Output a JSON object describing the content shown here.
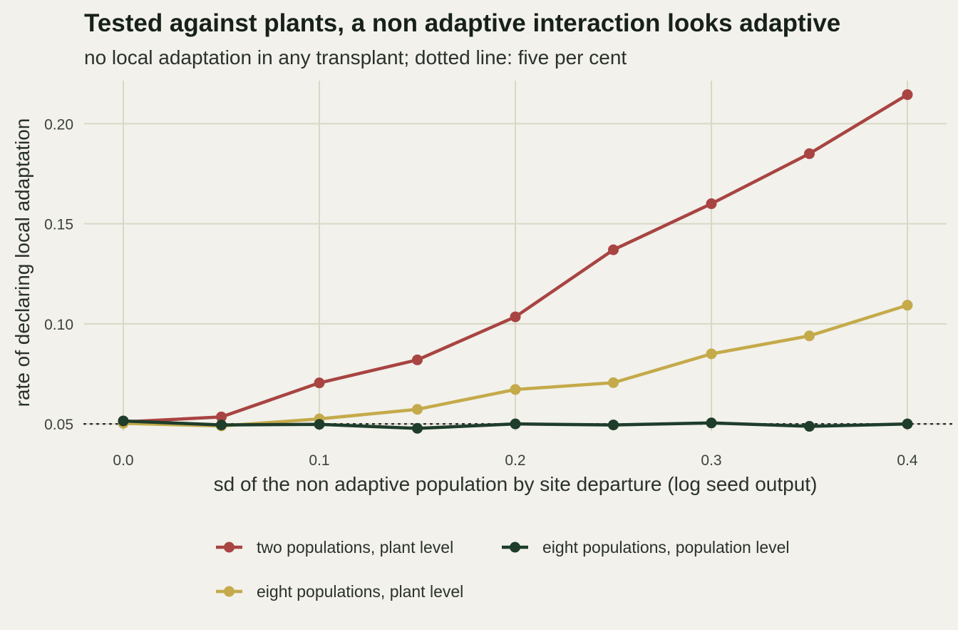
{
  "chart_data": {
    "type": "line",
    "title": "Tested against plants, a non adaptive interaction looks adaptive",
    "subtitle": "no local adaptation in any transplant; dotted line: five per cent",
    "xlabel": "sd of the non adaptive population by site departure (log seed output)",
    "ylabel": "rate of declaring local adaptation",
    "x": [
      0.0,
      0.05,
      0.1,
      0.15,
      0.2,
      0.25,
      0.3,
      0.35,
      0.4
    ],
    "xlim": [
      -0.02,
      0.42
    ],
    "ylim": [
      0.0465,
      0.2215
    ],
    "x_ticks": [
      0.0,
      0.1,
      0.2,
      0.3,
      0.4
    ],
    "x_tick_labels": [
      "0.0",
      "0.1",
      "0.2",
      "0.3",
      "0.4"
    ],
    "y_ticks": [
      0.05,
      0.1,
      0.15,
      0.2
    ],
    "y_tick_labels": [
      "0.05",
      "0.10",
      "0.15",
      "0.20"
    ],
    "reference_line": {
      "y": 0.05,
      "style": "dotted"
    },
    "grid": true,
    "legend_position": "bottom",
    "series": [
      {
        "name": "two populations, plant level",
        "color": "#a84442",
        "values": [
          0.051,
          0.0535,
          0.0705,
          0.082,
          0.1035,
          0.137,
          0.16,
          0.185,
          0.2145
        ]
      },
      {
        "name": "eight populations, population level",
        "color": "#1e3d2b",
        "values": [
          0.0515,
          0.0495,
          0.0498,
          0.0478,
          0.05,
          0.0495,
          0.0505,
          0.0488,
          0.05
        ]
      },
      {
        "name": "eight populations, plant level",
        "color": "#c4aa4a",
        "values": [
          0.0503,
          0.049,
          0.0525,
          0.0573,
          0.0672,
          0.0706,
          0.085,
          0.094,
          0.1093
        ]
      }
    ]
  }
}
